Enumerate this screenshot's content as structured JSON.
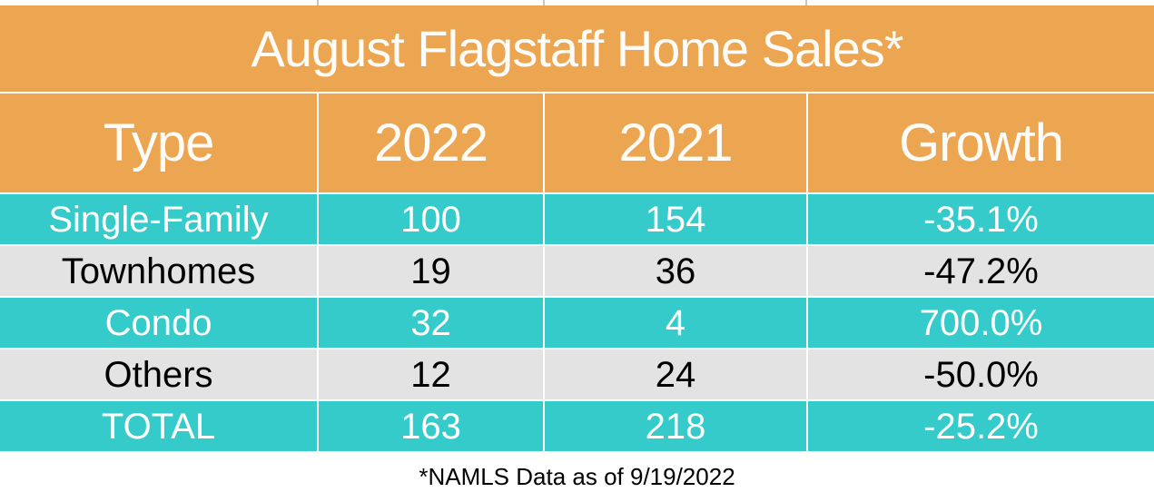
{
  "table": {
    "title": "August Flagstaff Home Sales*",
    "footnote": "*NAMLS Data as of 9/19/2022"
  },
  "colors": {
    "header_orange": "#ECA551",
    "row_teal": "#35CBCA",
    "row_gray": "#E4E3E3",
    "text_on_color": "#FFFFFF",
    "text_on_gray": "#000000"
  },
  "chart_data": {
    "type": "table",
    "title": "August Flagstaff Home Sales*",
    "columns": [
      "Type",
      "2022",
      "2021",
      "Growth"
    ],
    "rows": [
      [
        "Single-Family",
        "100",
        "154",
        "-35.1%"
      ],
      [
        "Townhomes",
        "19",
        "36",
        "-47.2%"
      ],
      [
        "Condo",
        "32",
        "4",
        "700.0%"
      ],
      [
        "Others",
        "12",
        "24",
        "-50.0%"
      ],
      [
        "TOTAL",
        "163",
        "218",
        "-25.2%"
      ]
    ],
    "footnote": "*NAMLS Data as of 9/19/2022",
    "layout": {
      "striped": "teal/gray alternating, header and title orange",
      "grid_lines": "white 2px separators",
      "footnote_position": "bottom-center"
    }
  }
}
